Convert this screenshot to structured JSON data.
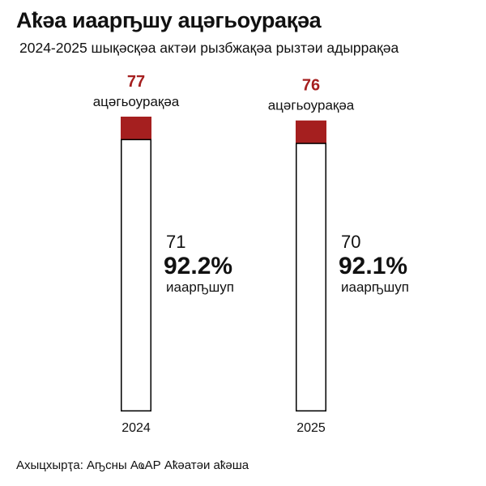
{
  "title": "Аҟәа иаарҧшу ацәгьоурақәа",
  "subtitle": "2024-2025 шықәсқәа актәи рызбжақәа рызтәи адыррақәа",
  "source": "Ахыцхырҭа: Аҧсны АҩАР Аҟәатәи аҟәша",
  "chart_data": {
    "type": "bar",
    "categories": [
      "2024",
      "2025"
    ],
    "series": [
      {
        "values": [
          77,
          76
        ]
      },
      {
        "values": [
          71,
          70
        ]
      }
    ],
    "percents": [
      "92.2%",
      "92.1%"
    ],
    "total_label": "ацәгьоурақәа",
    "solved_label": "иаарҧшуп",
    "colors": {
      "total": "#a51f1f",
      "solved": "#ffffff",
      "outline": "#000000"
    },
    "ylim": [
      0,
      77
    ]
  }
}
